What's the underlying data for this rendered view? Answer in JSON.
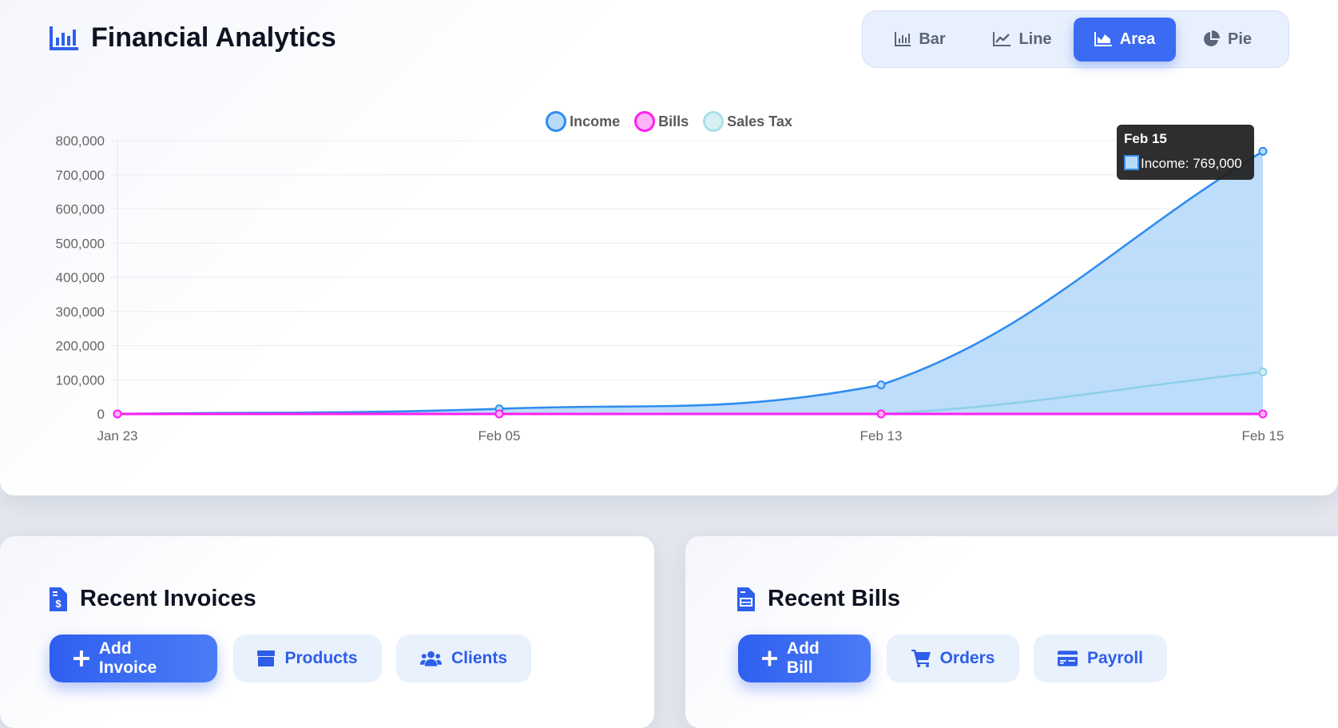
{
  "header": {
    "title": "Financial Analytics"
  },
  "chart_types": [
    {
      "label": "Bar",
      "icon": "bar-chart-icon"
    },
    {
      "label": "Line",
      "icon": "line-chart-icon"
    },
    {
      "label": "Area",
      "icon": "area-chart-icon",
      "active": true
    },
    {
      "label": "Pie",
      "icon": "pie-chart-icon"
    }
  ],
  "chart_data": {
    "type": "area",
    "categories": [
      "Jan 23",
      "Feb 05",
      "Feb 13",
      "Feb 15"
    ],
    "series": [
      {
        "name": "Income",
        "values": [
          0,
          15000,
          85000,
          769000
        ],
        "color": "#2f8cf0",
        "fill": "#b9dbfb"
      },
      {
        "name": "Bills",
        "values": [
          0,
          0,
          0,
          0
        ],
        "color": "#ff1ff0",
        "fill": "#ffb3f9"
      },
      {
        "name": "Sales Tax",
        "values": [
          0,
          0,
          0,
          123000
        ],
        "color": "#8fd0ea",
        "fill": "#cdeef3"
      }
    ],
    "yticks": [
      "0",
      "100,000",
      "200,000",
      "300,000",
      "400,000",
      "500,000",
      "600,000",
      "700,000",
      "800,000"
    ],
    "ylim": [
      0,
      800000
    ],
    "legend": "top-center",
    "tooltip": {
      "title": "Feb 15",
      "text": "Income: 769,000"
    }
  },
  "invoices": {
    "title": "Recent Invoices",
    "buttons": [
      "Add Invoice",
      "Products",
      "Clients"
    ]
  },
  "bills": {
    "title": "Recent Bills",
    "buttons": [
      "Add Bill",
      "Orders",
      "Payroll"
    ]
  }
}
